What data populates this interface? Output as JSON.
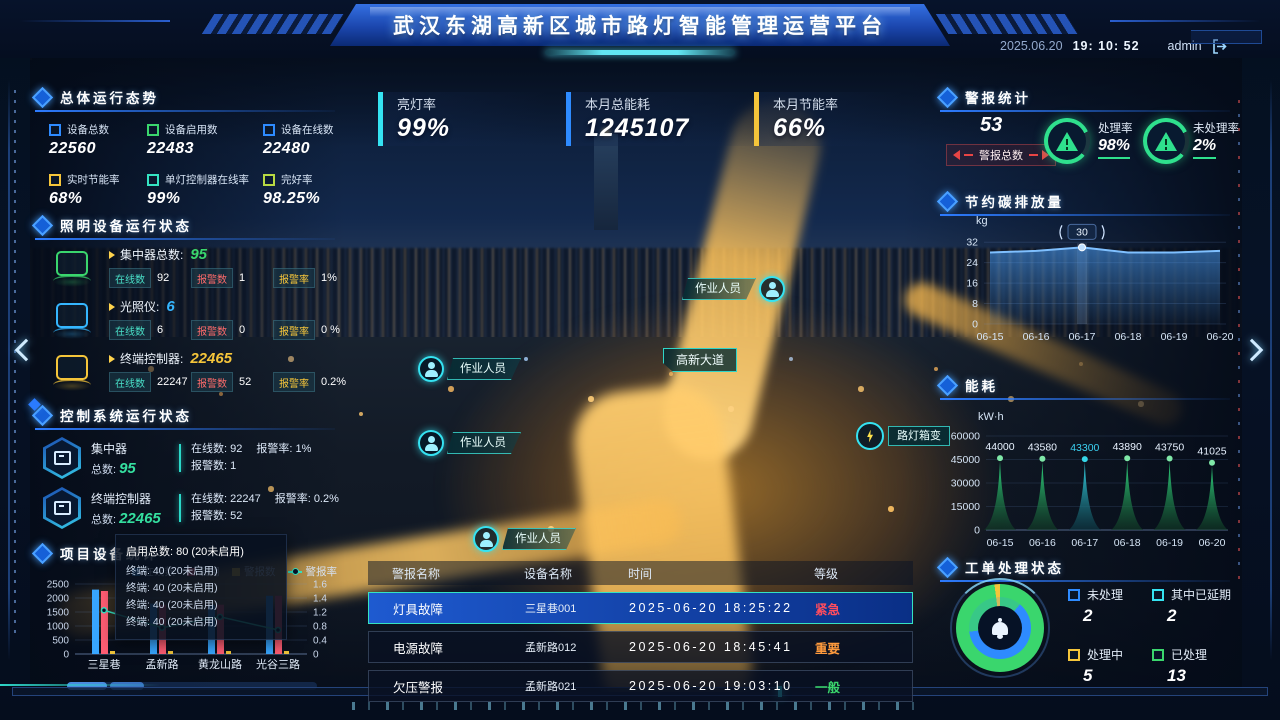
{
  "header": {
    "title": "武汉东湖高新区城市路灯智能管理运营平台",
    "date": "2025.06.20",
    "time": "19: 10: 52",
    "user": "admin"
  },
  "left": {
    "overall": {
      "title": "总体运行态势",
      "stats": [
        {
          "label": "设备总数",
          "value": "22560",
          "color": "#2e8bff"
        },
        {
          "label": "设备启用数",
          "value": "22483",
          "color": "#3ad66d"
        },
        {
          "label": "设备在线数",
          "value": "22480",
          "color": "#2e8bff"
        },
        {
          "label": "实时节能率",
          "value": "68%",
          "color": "#f5c53a"
        },
        {
          "label": "单灯控制器在线率",
          "value": "99%",
          "color": "#35e3c2"
        },
        {
          "label": "完好率",
          "value": "98.25%",
          "color": "#b8d943"
        }
      ]
    },
    "lighting": {
      "title": "照明设备运行状态",
      "devices": [
        {
          "name": "集中器总数:",
          "total": "95",
          "color": "#3ad66d",
          "stats": [
            {
              "label": "在线数",
              "value": "92",
              "lcolor": "#49e0c8"
            },
            {
              "label": "报警数",
              "value": "1",
              "lcolor": "#ff6b6b"
            },
            {
              "label": "报警率",
              "value": "1%",
              "lcolor": "#f5c53a"
            }
          ]
        },
        {
          "name": "光照仪:",
          "total": "6",
          "color": "#35b6ff",
          "stats": [
            {
              "label": "在线数",
              "value": "6",
              "lcolor": "#49e0c8"
            },
            {
              "label": "报警数",
              "value": "0",
              "lcolor": "#ff6b6b"
            },
            {
              "label": "报警率",
              "value": "0 %",
              "lcolor": "#f5c53a"
            }
          ]
        },
        {
          "name": "终端控制器:",
          "total": "22465",
          "color": "#f5c53a",
          "stats": [
            {
              "label": "在线数",
              "value": "22247",
              "lcolor": "#49e0c8"
            },
            {
              "label": "报警数",
              "value": "52",
              "lcolor": "#ff6b6b"
            },
            {
              "label": "报警率",
              "value": "0.2%",
              "lcolor": "#f5c53a"
            }
          ]
        }
      ]
    },
    "control": {
      "title": "控制系统运行状态",
      "systems": [
        {
          "name": "集中器",
          "total_label": "总数:",
          "total": "95",
          "line1a": "在线数: 92",
          "line1b": "报警率: 1%",
          "line2": "报警数: 1"
        },
        {
          "name": "终端控制器",
          "total_label": "总数:",
          "total": "22465",
          "line1a": "在线数: 22247",
          "line1b": "报警率: 0.2%",
          "line2": "报警数: 52"
        }
      ]
    },
    "project": {
      "title": "项目设备统计",
      "tooltip_title": "启用总数: 80 (20未启用)",
      "tooltip_lines": [
        "终端: 40 (20未启用)",
        "终端: 40 (20未启用)",
        "终端: 40 (20未启用)",
        "终端: 40 (20未启用)"
      ]
    }
  },
  "center": {
    "kpis": [
      {
        "label": "亮灯率",
        "value": "99%",
        "accent": "#35e3f2"
      },
      {
        "label": "本月总能耗",
        "value": "1245107",
        "accent": "#2e8bff"
      },
      {
        "label": "本月节能率",
        "value": "66%",
        "accent": "#f5c53a"
      }
    ],
    "worker_label": "作业人员",
    "road_label": "高新大道",
    "transformer_label": "路灯箱变",
    "alerts": {
      "headers": [
        "警报名称",
        "设备名称",
        "时间",
        "等级"
      ],
      "rows": [
        {
          "name": "灯具故障",
          "device": "三星巷001",
          "time": "2025-06-20 18:25:22",
          "level": "紧急",
          "level_color": "#ff4d5e",
          "selected": true
        },
        {
          "name": "电源故障",
          "device": "孟新路012",
          "time": "2025-06-20 18:45:41",
          "level": "重要",
          "level_color": "#ff9b3d",
          "selected": false
        },
        {
          "name": "欠压警报",
          "device": "孟新路021",
          "time": "2025-06-20 19:03:10",
          "level": "一般",
          "level_color": "#3ad66d",
          "selected": false
        }
      ]
    }
  },
  "right": {
    "alarm": {
      "title": "警报统计",
      "total": "53",
      "selector": "警报总数",
      "gauges": [
        {
          "label": "处理率",
          "value": "98%"
        },
        {
          "label": "未处理率",
          "value": "2%"
        }
      ]
    },
    "carbon": {
      "title": "节约碳排放量"
    },
    "energy": {
      "title": "能耗"
    },
    "workorder": {
      "title": "工单处理状态",
      "legend": [
        {
          "label": "未处理",
          "value": "2",
          "color": "#2e8bff"
        },
        {
          "label": "其中已延期",
          "value": "2",
          "color": "#35e3f2"
        },
        {
          "label": "处理中",
          "value": "5",
          "color": "#f5c53a"
        },
        {
          "label": "已处理",
          "value": "13",
          "color": "#3ad66d"
        }
      ]
    }
  },
  "chart_data": [
    {
      "id": "project-devices",
      "type": "bar",
      "title": "项目设备统计",
      "categories": [
        "三星巷",
        "孟新路",
        "黄龙山路",
        "光谷三路"
      ],
      "series": [
        {
          "name": "在线数",
          "kind": "bar",
          "color": "#38a6ff",
          "values": [
            2300,
            1800,
            1760,
            2080
          ]
        },
        {
          "name": "启用",
          "kind": "bar",
          "color": "#ff5d73",
          "values": [
            2250,
            1760,
            1760,
            2080
          ]
        },
        {
          "name": "警报数",
          "kind": "bar",
          "color": "#f0c53a",
          "values": [
            30,
            40,
            50,
            30
          ]
        },
        {
          "name": "警报率",
          "kind": "line",
          "color": "#35e3c2",
          "values": [
            1.0,
            0.6,
            0.85,
            0.55
          ],
          "axis": "right"
        }
      ],
      "ylim_left": [
        0,
        2500
      ],
      "yticks_left": [
        "2500",
        "2000",
        "1500",
        "1000",
        "500",
        "0"
      ],
      "ylim_right": [
        0,
        1.6
      ],
      "yticks_right": [
        "1.6",
        "1.4",
        "1.2",
        "0.8",
        "0.4",
        "0"
      ],
      "legend_position": "top-right",
      "grid": true
    },
    {
      "id": "carbon",
      "type": "area",
      "title": "节约碳排放量",
      "unit": "kg",
      "x": [
        "06-15",
        "06-16",
        "06-17",
        "06-18",
        "06-19",
        "06-20"
      ],
      "values": [
        28,
        28.6,
        30,
        28,
        28,
        28.6
      ],
      "yticks": [
        "32",
        "24",
        "16",
        "8",
        "0"
      ],
      "ylim": [
        0,
        36
      ],
      "tooltip_index": 2,
      "tooltip_value": "30",
      "color": "#4da3ff"
    },
    {
      "id": "energy",
      "type": "bar",
      "title": "能耗",
      "unit": "kW·h",
      "x": [
        "06-15",
        "06-16",
        "06-17",
        "06-18",
        "06-19",
        "06-20"
      ],
      "values": [
        44000,
        43580,
        43300,
        43890,
        43750,
        41025
      ],
      "labels": [
        "44000",
        "43580",
        "43300",
        "43890",
        "43750",
        "41025"
      ],
      "highlight_index": 2,
      "yticks": [
        "60000",
        "45000",
        "30000",
        "15000",
        "0"
      ],
      "ylim": [
        0,
        60000
      ],
      "color": "#2fd67e",
      "highlight_color": "#35d6e8"
    },
    {
      "id": "workorder",
      "type": "pie",
      "title": "工单处理状态",
      "slices": [
        {
          "label": "未处理",
          "value": 2,
          "color": "#2e8bff"
        },
        {
          "label": "其中已延期",
          "value": 2,
          "color": "#35e3f2"
        },
        {
          "label": "处理中",
          "value": 5,
          "color": "#f5c53a"
        },
        {
          "label": "已处理",
          "value": 13,
          "color": "#3ad66d"
        }
      ]
    }
  ]
}
